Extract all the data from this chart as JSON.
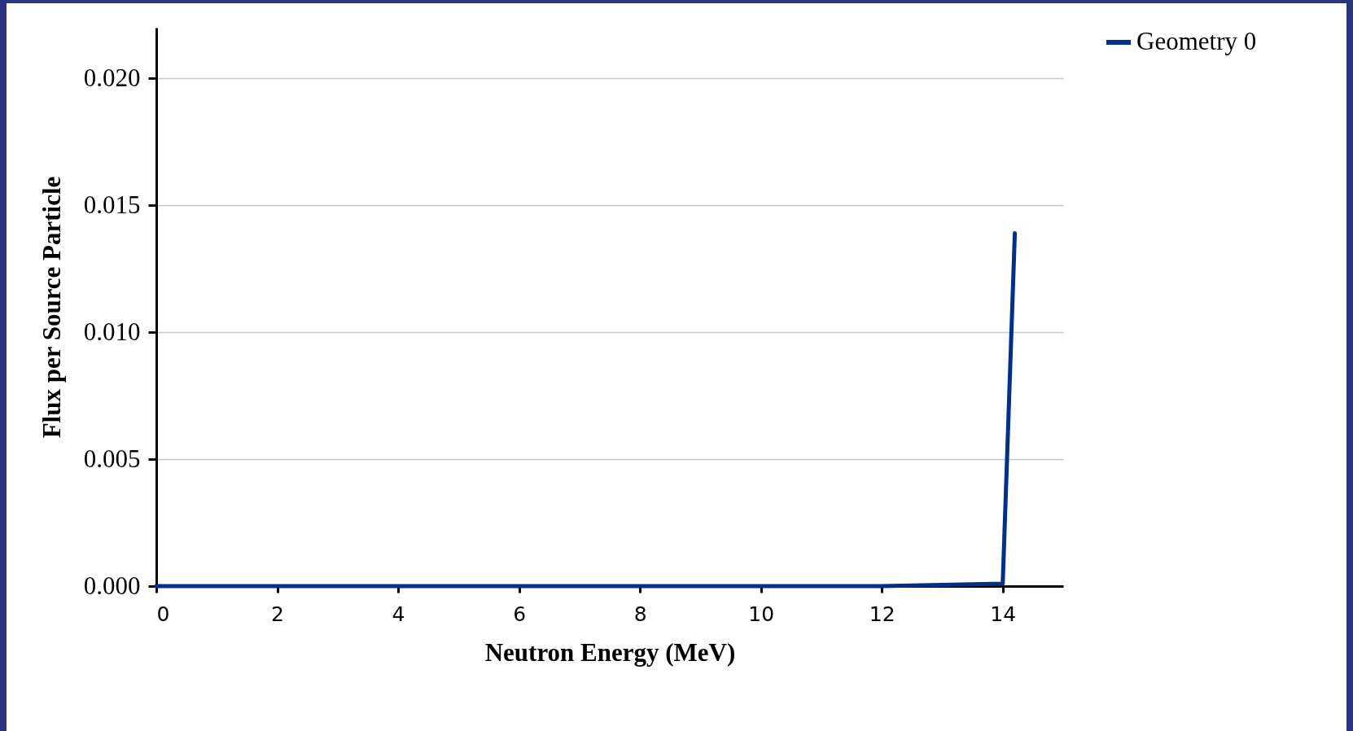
{
  "chart_data": {
    "type": "line",
    "xlabel": "Neutron Energy (MeV)",
    "ylabel": "Flux per Source Particle",
    "x": [
      0,
      10.8,
      12,
      14,
      14.2
    ],
    "series": [
      {
        "name": "Geometry 0",
        "color": "#003087",
        "values": [
          0,
          0,
          0,
          0.0001,
          0.0139
        ]
      }
    ],
    "xlim": [
      0,
      15
    ],
    "xticks": [
      0,
      2,
      4,
      6,
      8,
      10,
      12,
      14
    ],
    "ylim": [
      0,
      0.022
    ],
    "yticks": [
      {
        "value": 0,
        "label": "0.000"
      },
      {
        "value": 0.005,
        "label": "0.005"
      },
      {
        "value": 0.01,
        "label": "0.010"
      },
      {
        "value": 0.015,
        "label": "0.015"
      },
      {
        "value": 0.02,
        "label": "0.020"
      }
    ],
    "grid": "y",
    "legend": "right",
    "marker": "none",
    "line_style": "solid"
  }
}
